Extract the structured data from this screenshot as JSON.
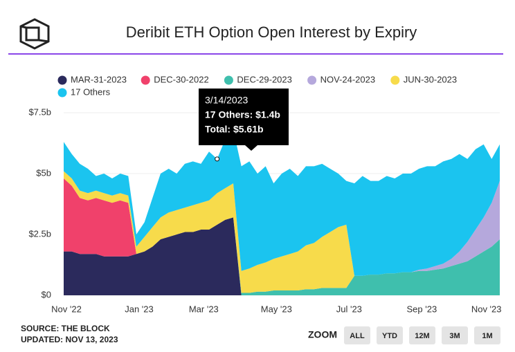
{
  "chart_data": {
    "type": "stacked-area",
    "title": "Deribit ETH Option Open Interest by Expiry",
    "categories": [
      "Nov '22",
      null,
      null,
      null,
      null,
      null,
      null,
      null,
      null,
      "Jan '23",
      null,
      null,
      null,
      null,
      null,
      null,
      null,
      "Mar '23",
      null,
      null,
      null,
      null,
      null,
      null,
      null,
      null,
      "May '23",
      null,
      null,
      null,
      null,
      null,
      null,
      null,
      null,
      "Jul '23",
      null,
      null,
      null,
      null,
      null,
      null,
      null,
      null,
      "Sep '23",
      null,
      null,
      null,
      null,
      null,
      null,
      null,
      "Nov '23",
      null,
      null
    ],
    "series": [
      {
        "name": "MAR-31-2023",
        "color": "#2b2a5c",
        "values": [
          1.8,
          1.8,
          1.7,
          1.7,
          1.7,
          1.6,
          1.6,
          1.6,
          1.6,
          1.7,
          1.8,
          2.0,
          2.3,
          2.4,
          2.5,
          2.6,
          2.6,
          2.7,
          2.7,
          2.9,
          3.1,
          3.2,
          0,
          0,
          0,
          0,
          0,
          0,
          0,
          0,
          0,
          0,
          0,
          0,
          0,
          0,
          0,
          0,
          0,
          0,
          0,
          0,
          0,
          0,
          0,
          0,
          0,
          0,
          0,
          0,
          0,
          0,
          0,
          0,
          0
        ]
      },
      {
        "name": "DEC-30-2022",
        "color": "#f0416b",
        "values": [
          3.0,
          2.7,
          2.3,
          2.2,
          2.3,
          2.3,
          2.2,
          2.3,
          2.2,
          0,
          0,
          0,
          0,
          0,
          0,
          0,
          0,
          0,
          0,
          0,
          0,
          0,
          0,
          0,
          0,
          0,
          0,
          0,
          0,
          0,
          0,
          0,
          0,
          0,
          0,
          0,
          0,
          0,
          0,
          0,
          0,
          0,
          0,
          0,
          0,
          0,
          0,
          0,
          0,
          0,
          0,
          0,
          0,
          0,
          0
        ]
      },
      {
        "name": "DEC-29-2023",
        "color": "#3fbfad",
        "values": [
          0,
          0,
          0,
          0,
          0,
          0,
          0,
          0,
          0,
          0,
          0,
          0,
          0,
          0,
          0,
          0,
          0,
          0,
          0,
          0,
          0,
          0,
          0.1,
          0.1,
          0.15,
          0.15,
          0.2,
          0.2,
          0.2,
          0.2,
          0.25,
          0.25,
          0.3,
          0.3,
          0.3,
          0.3,
          0.8,
          0.8,
          0.85,
          0.85,
          0.9,
          0.9,
          0.95,
          0.95,
          1.0,
          1.0,
          1.05,
          1.1,
          1.2,
          1.3,
          1.4,
          1.6,
          1.8,
          2.0,
          2.3
        ]
      },
      {
        "name": "NOV-24-2023",
        "color": "#b5a8dc",
        "values": [
          0,
          0,
          0,
          0,
          0,
          0,
          0,
          0,
          0,
          0,
          0,
          0,
          0,
          0,
          0,
          0,
          0,
          0,
          0,
          0,
          0,
          0,
          0,
          0,
          0,
          0,
          0,
          0,
          0,
          0,
          0,
          0,
          0,
          0,
          0,
          0,
          0,
          0,
          0,
          0,
          0,
          0,
          0,
          0,
          0.05,
          0.1,
          0.15,
          0.2,
          0.3,
          0.5,
          0.8,
          1.1,
          1.4,
          1.8,
          2.4
        ]
      },
      {
        "name": "JUN-30-2023",
        "color": "#f7db4b",
        "values": [
          0.3,
          0.3,
          0.3,
          0.3,
          0.3,
          0.3,
          0.3,
          0.3,
          0.3,
          0.3,
          0.6,
          0.8,
          0.9,
          1.0,
          1.0,
          1.0,
          1.1,
          1.1,
          1.2,
          1.3,
          1.3,
          1.4,
          0.9,
          1.0,
          1.1,
          1.2,
          1.3,
          1.4,
          1.5,
          1.6,
          1.8,
          1.9,
          2.1,
          2.3,
          2.5,
          2.6,
          0,
          0,
          0,
          0,
          0,
          0,
          0,
          0,
          0,
          0,
          0,
          0,
          0,
          0,
          0,
          0,
          0,
          0,
          0
        ]
      },
      {
        "name": "17 Others",
        "color": "#1bc4ef",
        "values": [
          1.2,
          1.0,
          1.1,
          1.0,
          0.6,
          0.8,
          0.7,
          0.8,
          0.8,
          0.5,
          0.6,
          1.2,
          1.8,
          1.8,
          1.5,
          1.8,
          1.8,
          1.6,
          2.0,
          1.4,
          2.0,
          2.2,
          4.3,
          4.4,
          3.75,
          3.95,
          3.1,
          3.4,
          3.5,
          3.1,
          3.25,
          3.15,
          3.0,
          2.6,
          2.2,
          1.8,
          3.8,
          4.1,
          3.85,
          3.85,
          4.0,
          3.9,
          4.05,
          4.05,
          4.15,
          4.2,
          4.1,
          4.2,
          4.1,
          4.0,
          3.4,
          3.3,
          3.0,
          1.8,
          1.5
        ]
      }
    ],
    "ylim": [
      0,
      7.5
    ],
    "yticks": [
      {
        "value": 0,
        "label": "$0"
      },
      {
        "value": 2.5,
        "label": "$2.5b"
      },
      {
        "value": 5,
        "label": "$5b"
      },
      {
        "value": 7.5,
        "label": "$7.5b"
      }
    ],
    "legend": "top",
    "tooltip": {
      "index": 19,
      "lines": [
        "3/14/2023",
        "17 Others: $1.4b",
        "Total: $5.61b"
      ]
    }
  },
  "footer": {
    "source": "SOURCE: THE BLOCK",
    "updated": "UPDATED: NOV 13, 2023",
    "zoom_label": "ZOOM",
    "zoom_buttons": [
      "ALL",
      "YTD",
      "12M",
      "3M",
      "1M"
    ]
  }
}
